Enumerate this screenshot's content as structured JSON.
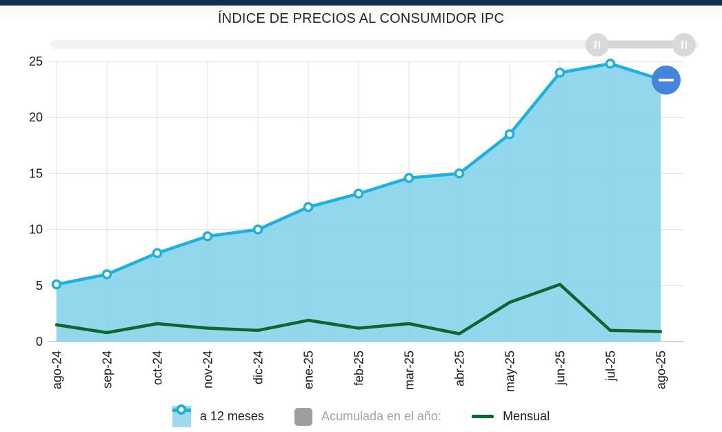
{
  "colors": {
    "top_bar": "#0e2e4d",
    "line_12m": "#1ab2e0",
    "fill_12m": "#7fd0e9",
    "line_mensual": "#0a682e",
    "acumulada_gray": "#9e9e9e",
    "zoom_button_blue": "#4385d8",
    "navigator_track": "#f3f3f3",
    "navigator_range": "#d6d6d6",
    "navigator_handle": "#d9d9d9",
    "grid_line": "#e0e0e0"
  },
  "icons": {
    "navigator_handles": "grip-icon",
    "zoom_out_button": "minus-icon",
    "series_12m_swatch": "area-marker-swatch-icon",
    "acumulada_swatch": "square-swatch-icon",
    "mensual_swatch": "line-swatch-icon"
  },
  "chart_data": {
    "type": "area",
    "title": "ÍNDICE DE PRECIOS AL CONSUMIDOR IPC",
    "categories": [
      "ago-24",
      "sep-24",
      "oct-24",
      "nov-24",
      "dic-24",
      "ene-25",
      "feb-25",
      "mar-25",
      "abr-25",
      "may-25",
      "jun-25",
      "jul-25",
      "ago-25"
    ],
    "series": [
      {
        "name": "a 12 meses",
        "type": "area",
        "color": "#1ab2e0",
        "fill_color": "#7fd0e9",
        "marker": "circle",
        "visible": true,
        "values": [
          5.1,
          6.0,
          7.9,
          9.4,
          10.0,
          12.0,
          13.2,
          14.6,
          15.0,
          18.5,
          24.0,
          24.8,
          23.4
        ]
      },
      {
        "name": "Acumulada en el año:",
        "type": "line",
        "color": "#9e9e9e",
        "visible": false,
        "values": []
      },
      {
        "name": "Mensual",
        "type": "line",
        "color": "#0a682e",
        "visible": true,
        "values": [
          1.5,
          0.8,
          1.6,
          1.2,
          1.0,
          1.9,
          1.2,
          1.6,
          0.7,
          3.5,
          5.1,
          1.0,
          0.9
        ]
      }
    ],
    "ylim": [
      0,
      25
    ],
    "yticks": [
      0,
      5,
      10,
      15,
      20,
      25
    ],
    "xlabel": "",
    "ylabel": "",
    "grid": true,
    "legend_position": "bottom"
  }
}
